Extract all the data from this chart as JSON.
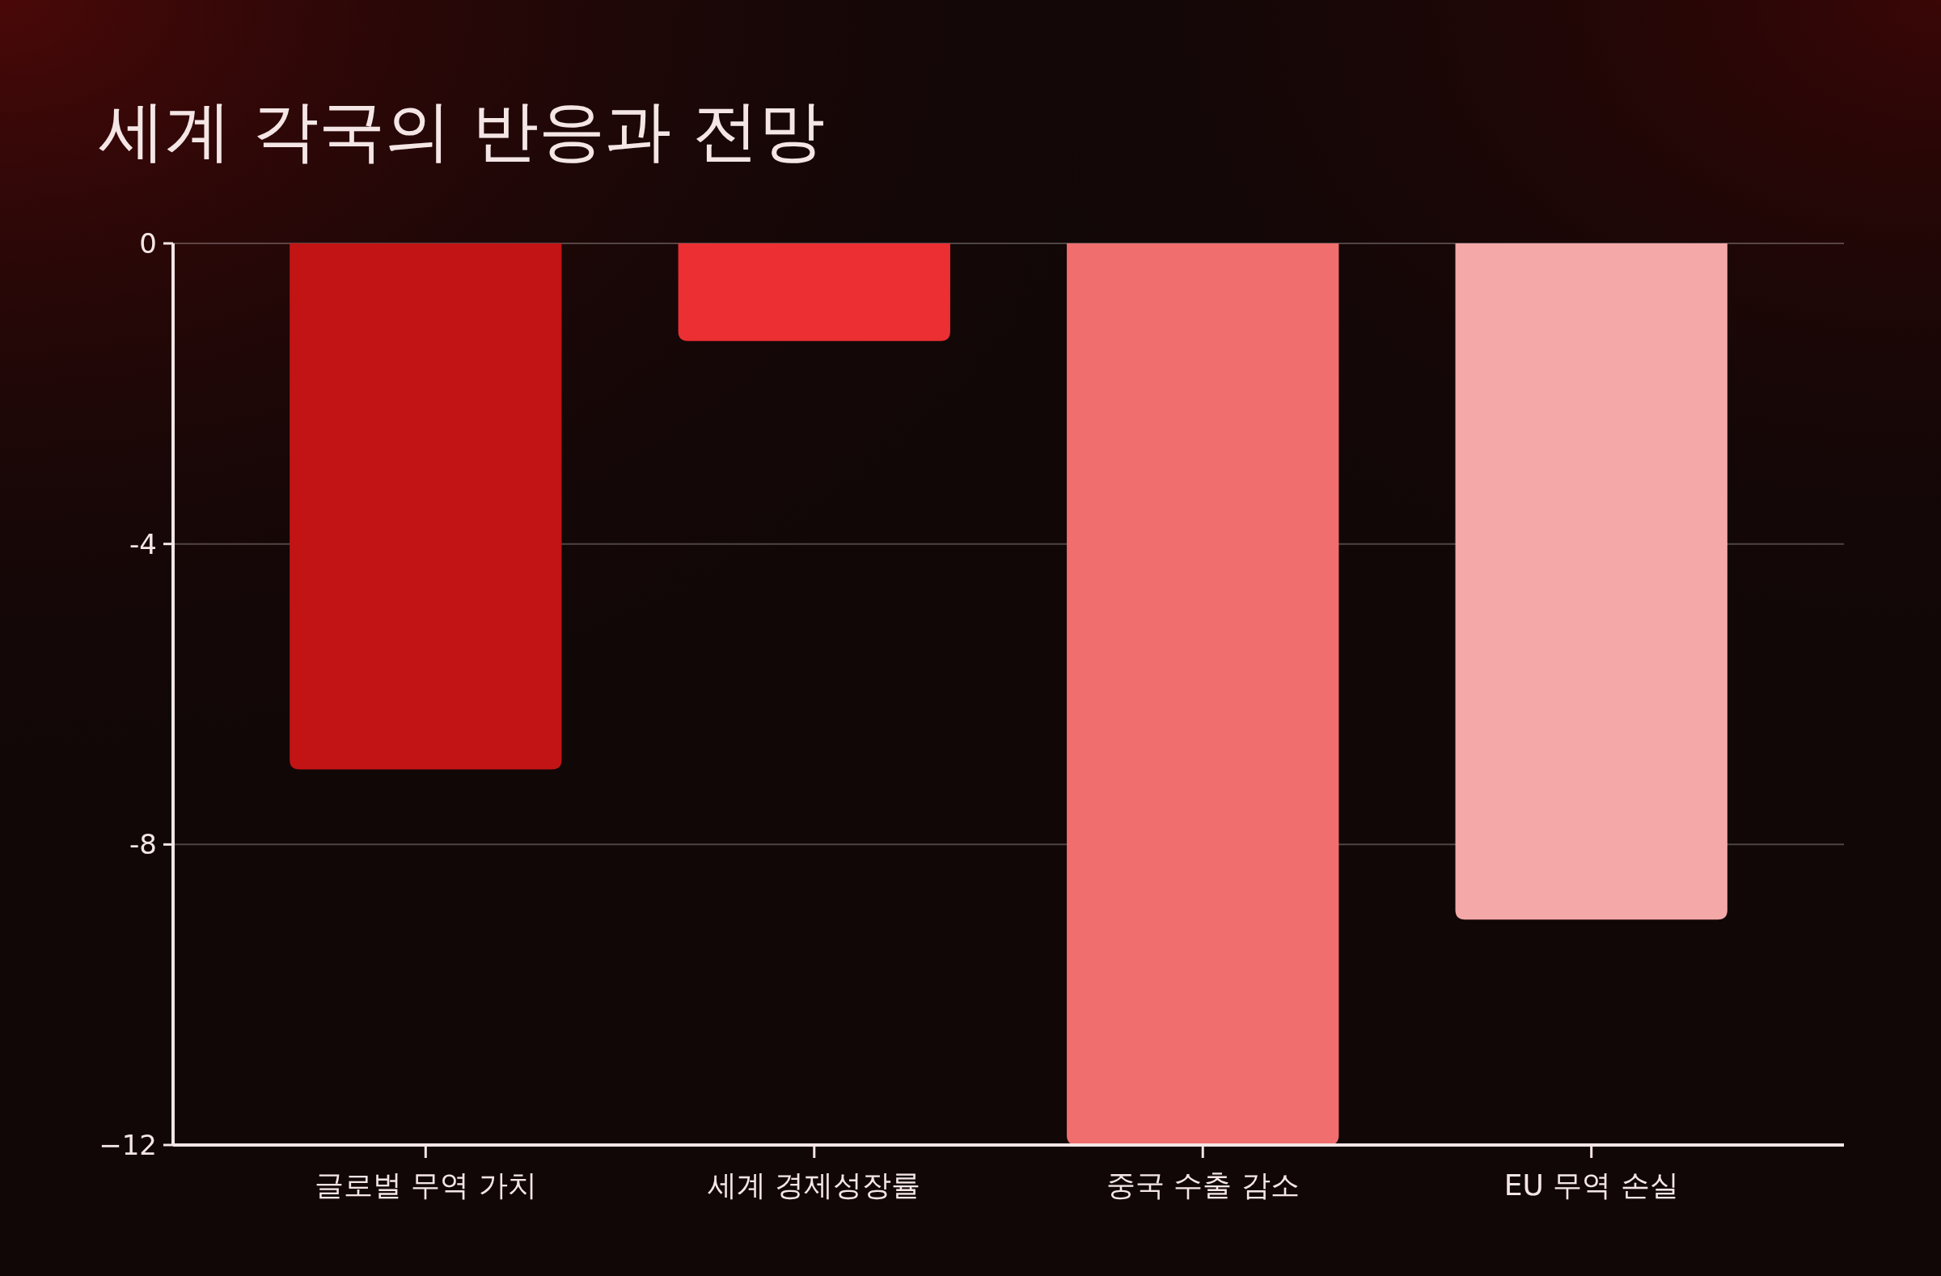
{
  "chart_data": {
    "type": "bar",
    "title": "세계 각국의 반응과 전망",
    "categories": [
      "글로벌 무역 가치",
      "세계 경제성장률",
      "중국 수출 감소",
      "EU 무역 손실"
    ],
    "values": [
      -7,
      -1.3,
      -12,
      -9
    ],
    "colors": [
      "#c21414",
      "#ec2f32",
      "#f06e6e",
      "#f5a8a8"
    ],
    "ylim": [
      -12,
      0
    ],
    "yticks": [
      0,
      -4,
      -8,
      {
        "value": -12,
        "label": "−12"
      }
    ],
    "grid": "y"
  }
}
